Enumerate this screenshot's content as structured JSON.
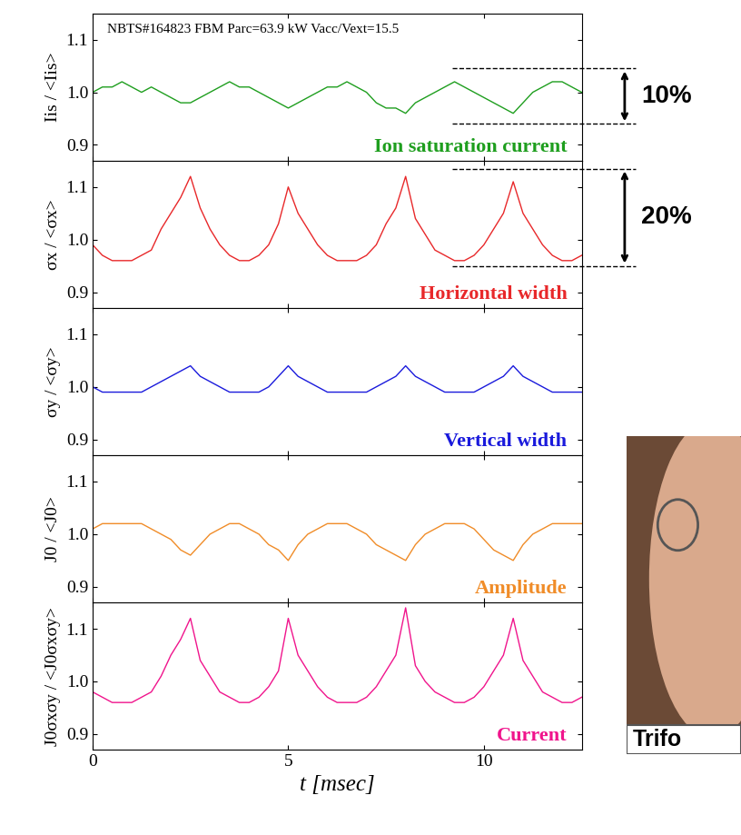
{
  "chart_data": [
    {
      "type": "line",
      "title": "NBTS#164823 FBM Parc=63.9 kW Vacc/Vext=15.5",
      "ylabel": "Iis / <Iis>",
      "label": "Ion saturation current",
      "color": "#1e9e1e",
      "x": [
        0,
        0.25,
        0.5,
        0.75,
        1.0,
        1.25,
        1.5,
        1.75,
        2.0,
        2.25,
        2.5,
        2.75,
        3.0,
        3.25,
        3.5,
        3.75,
        4.0,
        4.25,
        4.5,
        4.75,
        5.0,
        5.25,
        5.5,
        5.75,
        6.0,
        6.25,
        6.5,
        6.75,
        7.0,
        7.25,
        7.5,
        7.75,
        8.0,
        8.25,
        8.5,
        8.75,
        9.0,
        9.25,
        9.5,
        9.75,
        10.0,
        10.25,
        10.5,
        10.75,
        11.0,
        11.25,
        11.5,
        11.75,
        12.0,
        12.25,
        12.5
      ],
      "values": [
        1.0,
        1.01,
        1.01,
        1.02,
        1.01,
        1.0,
        1.01,
        1.0,
        0.99,
        0.98,
        0.98,
        0.99,
        1.0,
        1.01,
        1.02,
        1.01,
        1.01,
        1.0,
        0.99,
        0.98,
        0.97,
        0.98,
        0.99,
        1.0,
        1.01,
        1.01,
        1.02,
        1.01,
        1.0,
        0.98,
        0.97,
        0.97,
        0.96,
        0.98,
        0.99,
        1.0,
        1.01,
        1.02,
        1.01,
        1.0,
        0.99,
        0.98,
        0.97,
        0.96,
        0.98,
        1.0,
        1.01,
        1.02,
        1.02,
        1.01,
        1.0
      ],
      "annotation": {
        "text": "10%",
        "from_x": 9.2,
        "range": [
          0.94,
          1.045
        ]
      },
      "xlim": [
        0,
        12.5
      ],
      "xticks": [
        0,
        5,
        10
      ],
      "tick_labels": "y",
      "ylim": [
        0.87,
        1.15
      ],
      "yticks": [
        {
          "value": 0.9,
          "label": "0.9"
        },
        {
          "value": 1.0,
          "label": "1.0"
        },
        {
          "value": 1.1,
          "label": "1.1"
        }
      ]
    },
    {
      "type": "line",
      "ylabel": "σx / <σx>",
      "label": "Horizontal width",
      "color": "#e8282a",
      "x": [
        0,
        0.25,
        0.5,
        0.75,
        1.0,
        1.25,
        1.5,
        1.75,
        2.0,
        2.25,
        2.5,
        2.75,
        3.0,
        3.25,
        3.5,
        3.75,
        4.0,
        4.25,
        4.5,
        4.75,
        5.0,
        5.25,
        5.5,
        5.75,
        6.0,
        6.25,
        6.5,
        6.75,
        7.0,
        7.25,
        7.5,
        7.75,
        8.0,
        8.25,
        8.5,
        8.75,
        9.0,
        9.25,
        9.5,
        9.75,
        10.0,
        10.25,
        10.5,
        10.75,
        11.0,
        11.25,
        11.5,
        11.75,
        12.0,
        12.25,
        12.5
      ],
      "values": [
        0.99,
        0.97,
        0.96,
        0.96,
        0.96,
        0.97,
        0.98,
        1.02,
        1.05,
        1.08,
        1.12,
        1.06,
        1.02,
        0.99,
        0.97,
        0.96,
        0.96,
        0.97,
        0.99,
        1.03,
        1.1,
        1.05,
        1.02,
        0.99,
        0.97,
        0.96,
        0.96,
        0.96,
        0.97,
        0.99,
        1.03,
        1.06,
        1.12,
        1.04,
        1.01,
        0.98,
        0.97,
        0.96,
        0.96,
        0.97,
        0.99,
        1.02,
        1.05,
        1.11,
        1.05,
        1.02,
        0.99,
        0.97,
        0.96,
        0.96,
        0.97
      ],
      "annotation": {
        "text": "20%",
        "from_x": 9.2,
        "range": [
          0.95,
          1.135
        ]
      },
      "xlim": [
        0,
        12.5
      ],
      "xticks": [
        0,
        5,
        10
      ],
      "tick_labels": "y",
      "ylim": [
        0.87,
        1.15
      ],
      "yticks": [
        {
          "value": 0.9,
          "label": "0.9"
        },
        {
          "value": 1.0,
          "label": "1.0"
        },
        {
          "value": 1.1,
          "label": "1.1"
        }
      ]
    },
    {
      "type": "line",
      "ylabel": "σy / <σy>",
      "label": "Vertical width",
      "color": "#1a1adc",
      "x": [
        0,
        0.25,
        0.5,
        0.75,
        1.0,
        1.25,
        1.5,
        1.75,
        2.0,
        2.25,
        2.5,
        2.75,
        3.0,
        3.25,
        3.5,
        3.75,
        4.0,
        4.25,
        4.5,
        4.75,
        5.0,
        5.25,
        5.5,
        5.75,
        6.0,
        6.25,
        6.5,
        6.75,
        7.0,
        7.25,
        7.5,
        7.75,
        8.0,
        8.25,
        8.5,
        8.75,
        9.0,
        9.25,
        9.5,
        9.75,
        10.0,
        10.25,
        10.5,
        10.75,
        11.0,
        11.25,
        11.5,
        11.75,
        12.0,
        12.25,
        12.5
      ],
      "values": [
        1.0,
        0.99,
        0.99,
        0.99,
        0.99,
        0.99,
        1.0,
        1.01,
        1.02,
        1.03,
        1.04,
        1.02,
        1.01,
        1.0,
        0.99,
        0.99,
        0.99,
        0.99,
        1.0,
        1.02,
        1.04,
        1.02,
        1.01,
        1.0,
        0.99,
        0.99,
        0.99,
        0.99,
        0.99,
        1.0,
        1.01,
        1.02,
        1.04,
        1.02,
        1.01,
        1.0,
        0.99,
        0.99,
        0.99,
        0.99,
        1.0,
        1.01,
        1.02,
        1.04,
        1.02,
        1.01,
        1.0,
        0.99,
        0.99,
        0.99,
        0.99
      ],
      "xlim": [
        0,
        12.5
      ],
      "xticks": [
        0,
        5,
        10
      ],
      "tick_labels": "y",
      "ylim": [
        0.87,
        1.15
      ],
      "yticks": [
        {
          "value": 0.9,
          "label": "0.9"
        },
        {
          "value": 1.0,
          "label": "1.0"
        },
        {
          "value": 1.1,
          "label": "1.1"
        }
      ]
    },
    {
      "type": "line",
      "ylabel": "J0 / <J0>",
      "label": "Amplitude",
      "color": "#f08c28",
      "x": [
        0,
        0.25,
        0.5,
        0.75,
        1.0,
        1.25,
        1.5,
        1.75,
        2.0,
        2.25,
        2.5,
        2.75,
        3.0,
        3.25,
        3.5,
        3.75,
        4.0,
        4.25,
        4.5,
        4.75,
        5.0,
        5.25,
        5.5,
        5.75,
        6.0,
        6.25,
        6.5,
        6.75,
        7.0,
        7.25,
        7.5,
        7.75,
        8.0,
        8.25,
        8.5,
        8.75,
        9.0,
        9.25,
        9.5,
        9.75,
        10.0,
        10.25,
        10.5,
        10.75,
        11.0,
        11.25,
        11.5,
        11.75,
        12.0,
        12.25,
        12.5
      ],
      "values": [
        1.01,
        1.02,
        1.02,
        1.02,
        1.02,
        1.02,
        1.01,
        1.0,
        0.99,
        0.97,
        0.96,
        0.98,
        1.0,
        1.01,
        1.02,
        1.02,
        1.01,
        1.0,
        0.98,
        0.97,
        0.95,
        0.98,
        1.0,
        1.01,
        1.02,
        1.02,
        1.02,
        1.01,
        1.0,
        0.98,
        0.97,
        0.96,
        0.95,
        0.98,
        1.0,
        1.01,
        1.02,
        1.02,
        1.02,
        1.01,
        0.99,
        0.97,
        0.96,
        0.95,
        0.98,
        1.0,
        1.01,
        1.02,
        1.02,
        1.02,
        1.02
      ],
      "xlim": [
        0,
        12.5
      ],
      "xticks": [
        0,
        5,
        10
      ],
      "tick_labels": "y",
      "ylim": [
        0.87,
        1.15
      ],
      "yticks": [
        {
          "value": 0.9,
          "label": "0.9"
        },
        {
          "value": 1.0,
          "label": "1.0"
        },
        {
          "value": 1.1,
          "label": "1.1"
        }
      ]
    },
    {
      "type": "line",
      "ylabel": "J0σxσy / <J0σxσy>",
      "label": "Current",
      "color": "#f0148c",
      "xlabel": "t [msec]",
      "x": [
        0,
        0.25,
        0.5,
        0.75,
        1.0,
        1.25,
        1.5,
        1.75,
        2.0,
        2.25,
        2.5,
        2.75,
        3.0,
        3.25,
        3.5,
        3.75,
        4.0,
        4.25,
        4.5,
        4.75,
        5.0,
        5.25,
        5.5,
        5.75,
        6.0,
        6.25,
        6.5,
        6.75,
        7.0,
        7.25,
        7.5,
        7.75,
        8.0,
        8.25,
        8.5,
        8.75,
        9.0,
        9.25,
        9.5,
        9.75,
        10.0,
        10.25,
        10.5,
        10.75,
        11.0,
        11.25,
        11.5,
        11.75,
        12.0,
        12.25,
        12.5
      ],
      "values": [
        0.98,
        0.97,
        0.96,
        0.96,
        0.96,
        0.97,
        0.98,
        1.01,
        1.05,
        1.08,
        1.12,
        1.04,
        1.01,
        0.98,
        0.97,
        0.96,
        0.96,
        0.97,
        0.99,
        1.02,
        1.12,
        1.05,
        1.02,
        0.99,
        0.97,
        0.96,
        0.96,
        0.96,
        0.97,
        0.99,
        1.02,
        1.05,
        1.14,
        1.03,
        1.0,
        0.98,
        0.97,
        0.96,
        0.96,
        0.97,
        0.99,
        1.02,
        1.05,
        1.12,
        1.04,
        1.01,
        0.98,
        0.97,
        0.96,
        0.96,
        0.97
      ],
      "xlim": [
        0,
        12.5
      ],
      "xticks": [
        0,
        5,
        10
      ],
      "ylim": [
        0.87,
        1.15
      ],
      "yticks": [
        {
          "value": 0.9,
          "label": "0.9"
        },
        {
          "value": 1.0,
          "label": "1.0"
        },
        {
          "value": 1.1,
          "label": "1.1"
        }
      ]
    }
  ],
  "photo_caption": "Trifo"
}
